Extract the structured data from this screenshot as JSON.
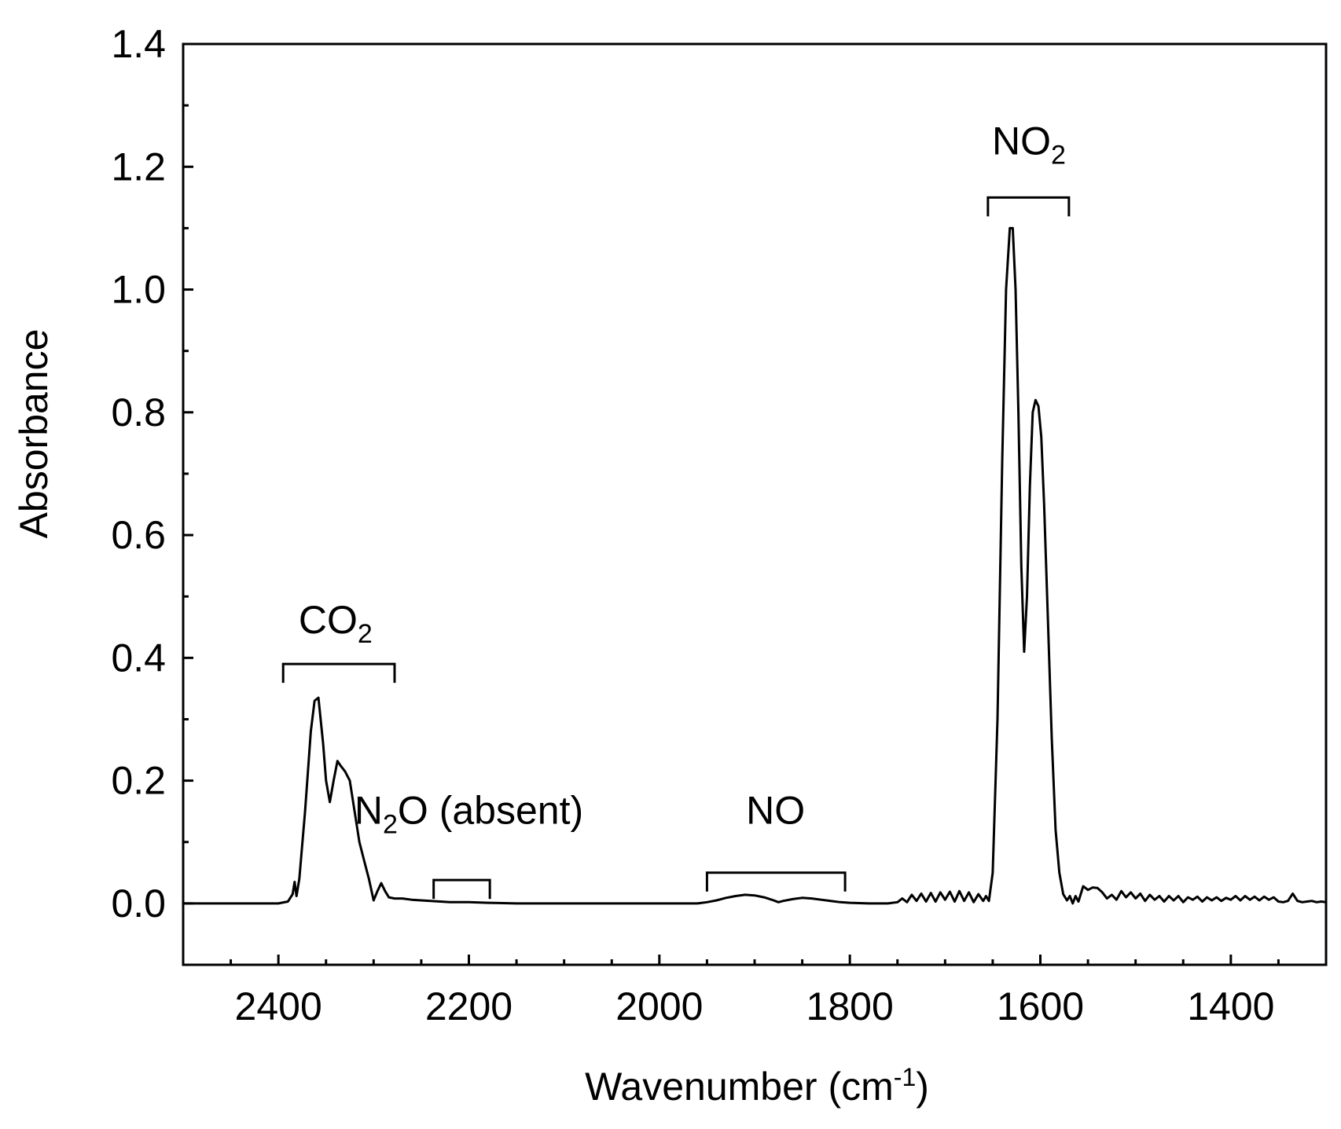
{
  "chart_data": {
    "type": "line",
    "xlabel": "Wavenumber (cm",
    "xlabel_sup": "-1",
    "xlabel_end": ")",
    "ylabel": "Absorbance",
    "xlim": [
      2500,
      1300
    ],
    "ylim": [
      -0.1,
      1.4
    ],
    "x_reversed": true,
    "x_ticks": [
      2400,
      2200,
      2000,
      1800,
      1600,
      1400
    ],
    "x_tick_labels": [
      "2400",
      "2200",
      "2000",
      "1800",
      "1600",
      "1400"
    ],
    "y_ticks": [
      0.0,
      0.2,
      0.4,
      0.6,
      0.8,
      1.0,
      1.2,
      1.4
    ],
    "y_tick_labels": [
      "0.0",
      "0.2",
      "0.4",
      "0.6",
      "0.8",
      "1.0",
      "1.2",
      "1.4"
    ],
    "grid": false,
    "line_color": "#000000",
    "series": [
      {
        "x": [
          2500,
          2400,
          2390,
          2385,
          2383,
          2381,
          2378,
          2372,
          2366,
          2362,
          2358,
          2353,
          2350,
          2346,
          2342,
          2338,
          2335,
          2330,
          2325,
          2320,
          2315,
          2310,
          2305,
          2300,
          2296,
          2292,
          2288,
          2284,
          2278,
          2270,
          2260,
          2250,
          2240,
          2230,
          2220,
          2210,
          2200,
          2180,
          2150,
          2100,
          2000,
          1960,
          1950,
          1940,
          1930,
          1920,
          1910,
          1900,
          1890,
          1880,
          1875,
          1870,
          1860,
          1850,
          1840,
          1830,
          1820,
          1810,
          1800,
          1780,
          1760,
          1750,
          1745,
          1740,
          1735,
          1730,
          1725,
          1720,
          1715,
          1710,
          1705,
          1700,
          1695,
          1690,
          1685,
          1680,
          1675,
          1670,
          1665,
          1660,
          1657,
          1654,
          1650,
          1645,
          1640,
          1636,
          1632,
          1629,
          1626,
          1623,
          1620,
          1617,
          1614,
          1611,
          1608,
          1605,
          1602,
          1599,
          1596,
          1592,
          1588,
          1584,
          1580,
          1576,
          1572,
          1569,
          1566,
          1563,
          1560,
          1555,
          1550,
          1545,
          1540,
          1535,
          1530,
          1525,
          1520,
          1515,
          1510,
          1505,
          1500,
          1495,
          1490,
          1485,
          1480,
          1475,
          1470,
          1465,
          1460,
          1455,
          1450,
          1445,
          1440,
          1435,
          1430,
          1425,
          1420,
          1415,
          1410,
          1405,
          1400,
          1395,
          1390,
          1385,
          1380,
          1375,
          1370,
          1365,
          1360,
          1355,
          1350,
          1345,
          1340,
          1335,
          1330,
          1325,
          1320,
          1315,
          1310,
          1305,
          1300
        ],
        "y": [
          0.0,
          0.0,
          0.003,
          0.015,
          0.035,
          0.012,
          0.04,
          0.15,
          0.28,
          0.33,
          0.335,
          0.26,
          0.2,
          0.165,
          0.2,
          0.232,
          0.225,
          0.215,
          0.2,
          0.15,
          0.1,
          0.07,
          0.04,
          0.005,
          0.02,
          0.033,
          0.02,
          0.01,
          0.008,
          0.008,
          0.006,
          0.005,
          0.004,
          0.003,
          0.002,
          0.002,
          0.002,
          0.001,
          0.0,
          0.0,
          0.0,
          0.0,
          0.002,
          0.005,
          0.009,
          0.012,
          0.014,
          0.013,
          0.01,
          0.005,
          0.002,
          0.004,
          0.007,
          0.009,
          0.008,
          0.006,
          0.004,
          0.002,
          0.001,
          0.0,
          0.0,
          0.002,
          0.008,
          0.002,
          0.014,
          0.004,
          0.016,
          0.003,
          0.017,
          0.003,
          0.018,
          0.006,
          0.019,
          0.003,
          0.02,
          0.004,
          0.018,
          0.002,
          0.015,
          0.004,
          0.012,
          0.004,
          0.05,
          0.3,
          0.72,
          1.0,
          1.1,
          1.1,
          1.0,
          0.8,
          0.55,
          0.41,
          0.5,
          0.68,
          0.8,
          0.82,
          0.81,
          0.76,
          0.65,
          0.46,
          0.27,
          0.12,
          0.05,
          0.015,
          0.005,
          0.012,
          0.0,
          0.012,
          0.003,
          0.028,
          0.022,
          0.026,
          0.025,
          0.018,
          0.008,
          0.014,
          0.006,
          0.02,
          0.01,
          0.018,
          0.008,
          0.016,
          0.004,
          0.014,
          0.006,
          0.012,
          0.003,
          0.012,
          0.005,
          0.012,
          0.002,
          0.01,
          0.006,
          0.011,
          0.003,
          0.01,
          0.005,
          0.01,
          0.004,
          0.009,
          0.006,
          0.012,
          0.005,
          0.012,
          0.006,
          0.011,
          0.005,
          0.011,
          0.006,
          0.01,
          0.003,
          0.002,
          0.004,
          0.016,
          0.004,
          0.002,
          0.003,
          0.004,
          0.002,
          0.003,
          0.002
        ]
      }
    ],
    "annotations": [
      {
        "label": "CO",
        "sub": "2",
        "rest": "",
        "x": 2340,
        "y": 0.44,
        "bracket": [
          2395,
          2278
        ],
        "bracket_y": 0.39
      },
      {
        "label": "N",
        "sub": "2",
        "rest": "O (absent)",
        "x": 2200,
        "y": 0.13,
        "bracket": [
          2237,
          2178
        ],
        "bracket_y": 0.038
      },
      {
        "label": "NO",
        "sub": "",
        "rest": "",
        "x": 1878,
        "y": 0.13,
        "bracket": [
          1950,
          1805
        ],
        "bracket_y": 0.05
      },
      {
        "label": "NO",
        "sub": "2",
        "rest": "",
        "x": 1612,
        "y": 1.22,
        "bracket": [
          1655,
          1570
        ],
        "bracket_y": 1.15
      }
    ]
  }
}
